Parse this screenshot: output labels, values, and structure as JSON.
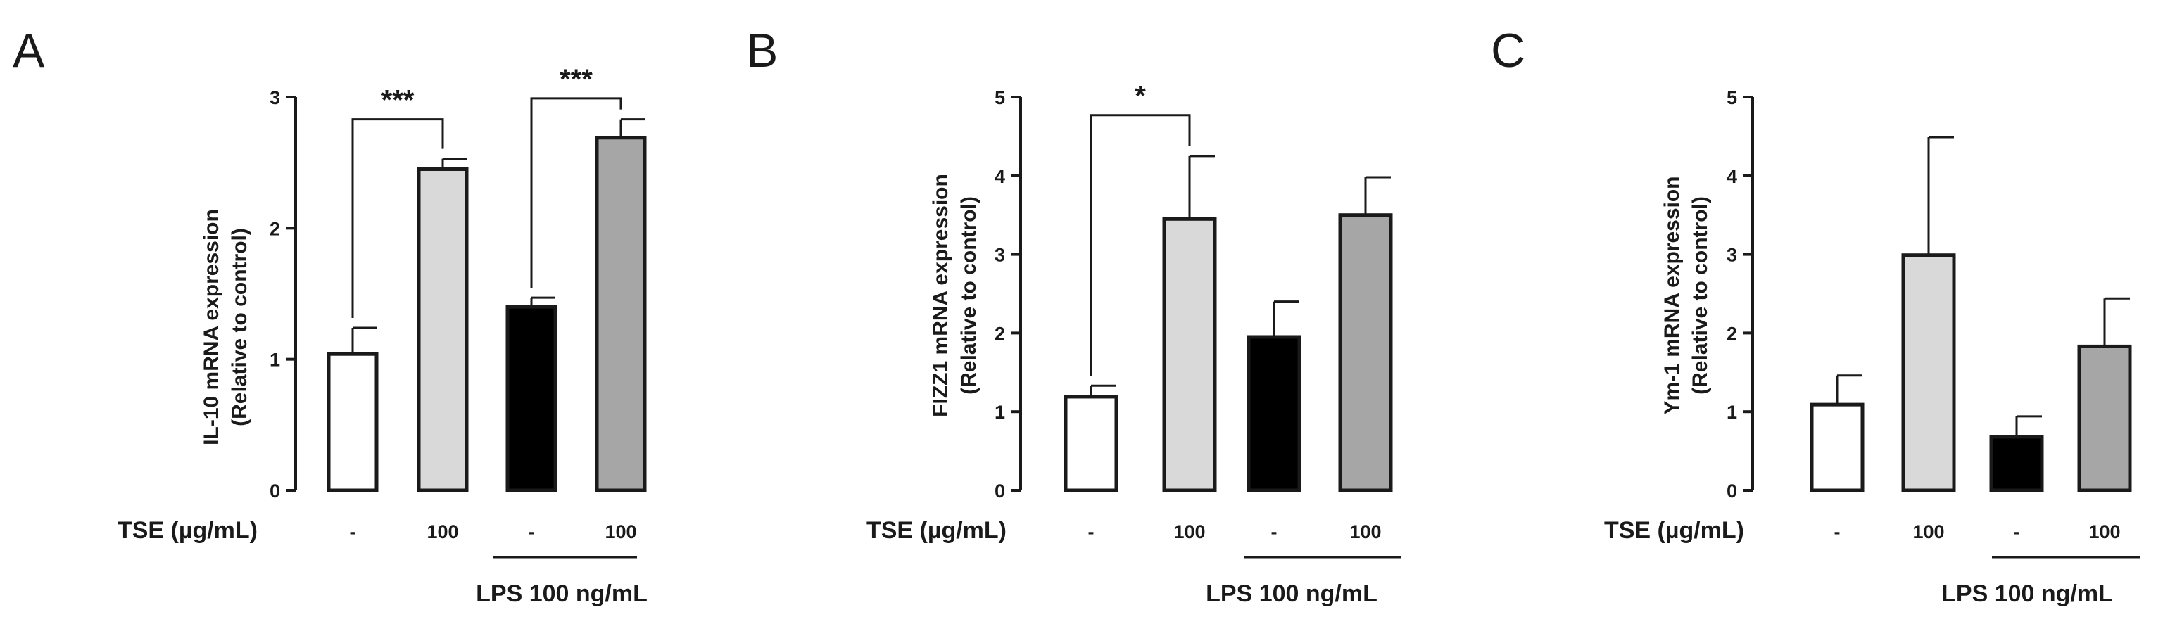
{
  "colors": {
    "axis": "#1a1a1a",
    "bars": [
      "#ffffff",
      "#d9d9d9",
      "#000000",
      "#a6a6a6"
    ]
  },
  "chart_data": [
    {
      "panel": "A",
      "type": "bar",
      "ylabel": "IL-10 mRNA expression",
      "ylabel_sub": "(Relative to control)",
      "ylim": [
        0,
        3
      ],
      "yticks": [
        "0",
        "1",
        "2",
        "3"
      ],
      "row_label": "TSE (µg/mL)",
      "conditions": [
        "-",
        "100",
        "-",
        "100"
      ],
      "group_label": "LPS 100 ng/mL",
      "values": [
        1.04,
        2.45,
        1.4,
        2.69
      ],
      "errors": [
        0.2,
        0.08,
        0.07,
        0.14
      ],
      "significance": [
        {
          "from": 0,
          "to": 1,
          "label": "***",
          "level": 2.83
        },
        {
          "from": 2,
          "to": 3,
          "label": "***",
          "level": 2.99
        }
      ]
    },
    {
      "panel": "B",
      "type": "bar",
      "ylabel": "FIZZ1 mRNA expression",
      "ylabel_sub": "(Relative to control)",
      "ylim": [
        0,
        5
      ],
      "yticks": [
        "0",
        "1",
        "2",
        "3",
        "4",
        "5"
      ],
      "row_label": "TSE (µg/mL)",
      "conditions": [
        "-",
        "100",
        "-",
        "100"
      ],
      "group_label": "LPS 100 ng/mL",
      "values": [
        1.19,
        3.45,
        1.95,
        3.5
      ],
      "errors": [
        0.14,
        0.8,
        0.45,
        0.48
      ],
      "significance": [
        {
          "from": 0,
          "to": 1,
          "label": "*",
          "level": 4.77
        }
      ]
    },
    {
      "panel": "C",
      "type": "bar",
      "ylabel": "Ym-1 mRNA expression",
      "ylabel_sub": "(Relative to control)",
      "ylim": [
        0,
        5
      ],
      "yticks": [
        "0",
        "1",
        "2",
        "3",
        "4",
        "5"
      ],
      "row_label": "TSE (µg/mL)",
      "conditions": [
        "-",
        "100",
        "-",
        "100"
      ],
      "group_label": "LPS 100 ng/mL",
      "values": [
        1.09,
        2.99,
        0.68,
        1.83
      ],
      "errors": [
        0.37,
        1.5,
        0.26,
        0.61
      ],
      "significance": []
    }
  ]
}
